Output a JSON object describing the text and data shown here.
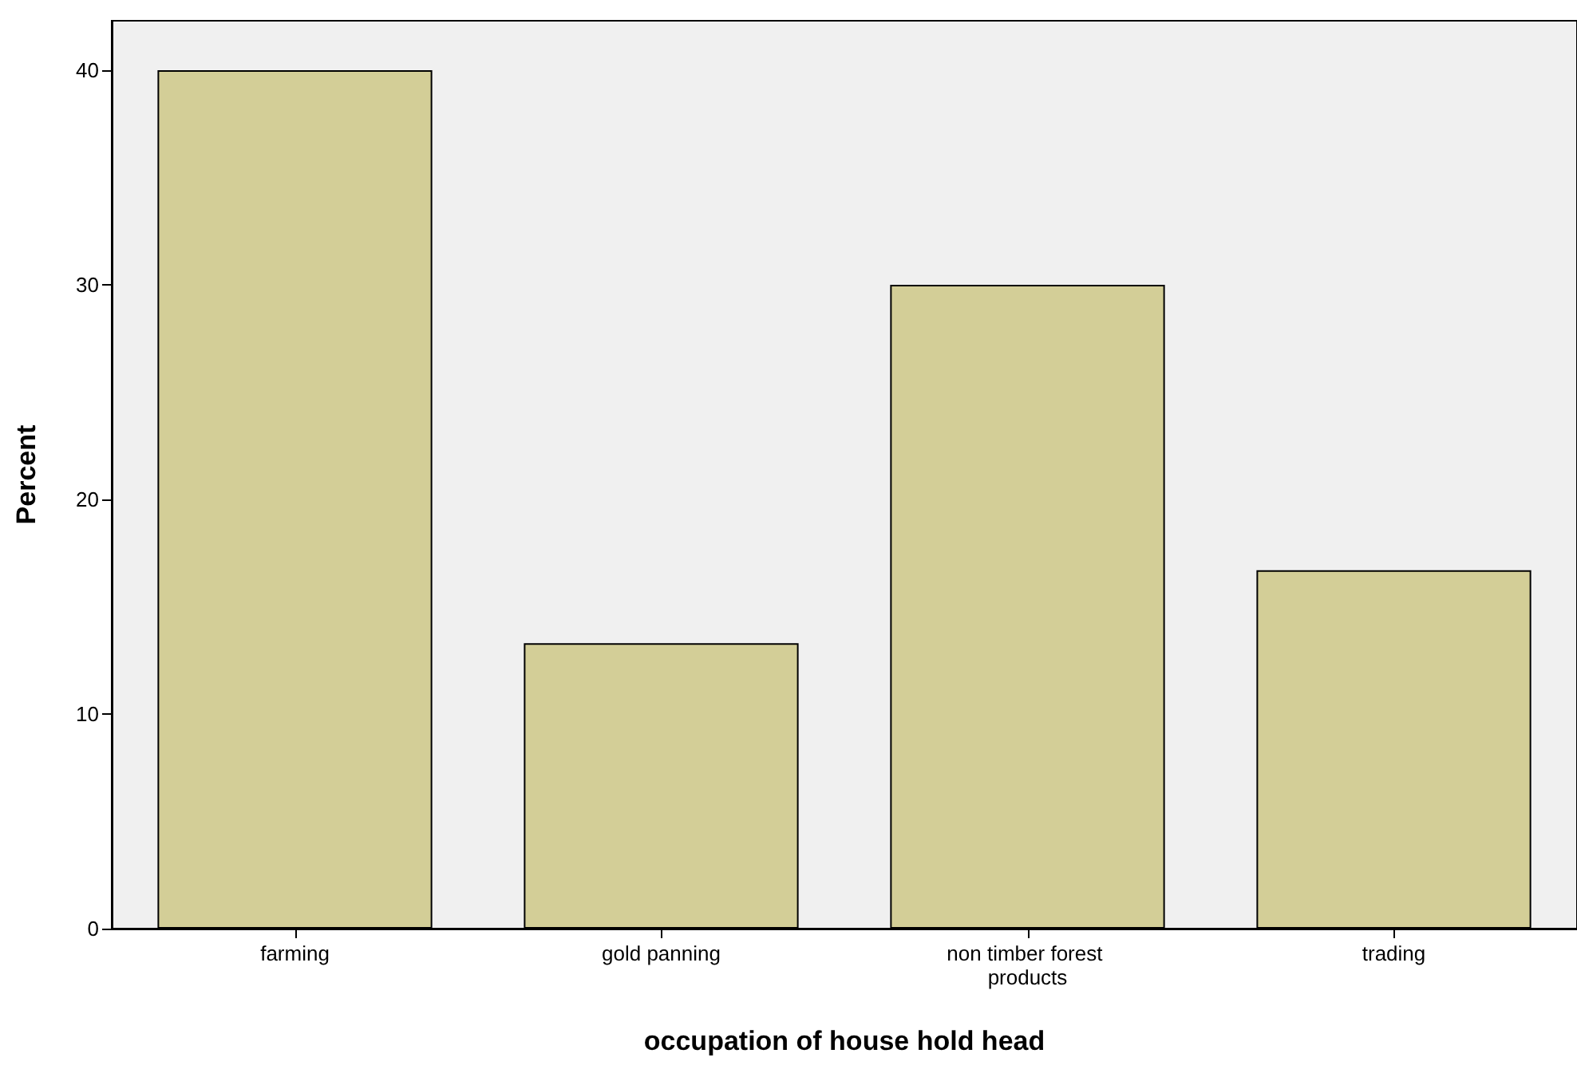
{
  "chart_data": {
    "type": "bar",
    "xlabel": "occupation of house hold head",
    "ylabel": "Percent",
    "categories": [
      "farming",
      "gold panning",
      "non timber forest products",
      "trading"
    ],
    "values": [
      40,
      13.3,
      30,
      16.7
    ],
    "color": "#d3ce97",
    "ylim": [
      0,
      42.3
    ],
    "yticks": [
      0,
      10,
      20,
      30,
      40
    ],
    "grid": false
  }
}
